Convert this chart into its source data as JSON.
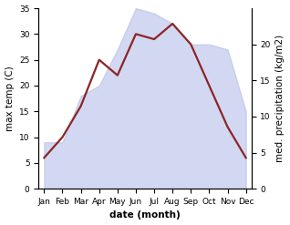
{
  "months": [
    "Jan",
    "Feb",
    "Mar",
    "Apr",
    "May",
    "Jun",
    "Jul",
    "Aug",
    "Sep",
    "Oct",
    "Nov",
    "Dec"
  ],
  "max_temp": [
    6,
    10,
    16,
    25,
    22,
    30,
    29,
    32,
    28,
    20,
    12,
    6
  ],
  "precipitation_temp_scale": [
    9,
    9,
    18,
    20,
    27,
    35,
    34,
    32,
    28,
    28,
    27,
    15
  ],
  "temp_ylim": [
    0,
    35
  ],
  "precip_ylim": [
    0,
    25
  ],
  "fill_color": "#b0b8e8",
  "fill_alpha": 0.55,
  "line_color": "#8b2525",
  "line_width": 1.6,
  "xlabel": "date (month)",
  "ylabel_left": "max temp (C)",
  "ylabel_right": "med. precipitation (kg/m2)",
  "yticks_left": [
    0,
    5,
    10,
    15,
    20,
    25,
    30,
    35
  ],
  "yticks_right": [
    0,
    5,
    10,
    15,
    20
  ],
  "background_color": "#ffffff",
  "label_fontsize": 7.5,
  "tick_fontsize": 6.5
}
